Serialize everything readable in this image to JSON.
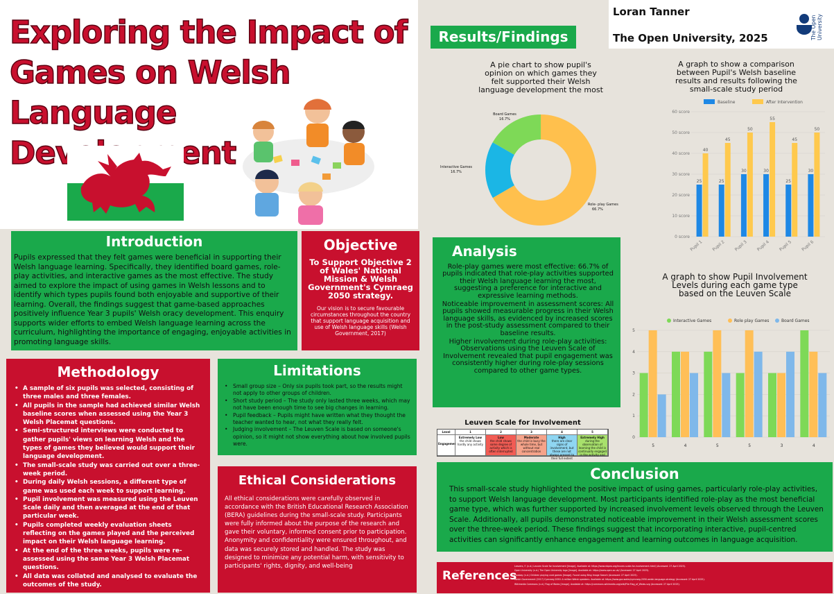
{
  "title": {
    "line1": "Exploring the Impact of",
    "line2": "Games on Welsh Language",
    "line3": "Development"
  },
  "author": {
    "name": "Loran Tanner",
    "institution": "The Open University, 2025",
    "logo_text": "The Open University"
  },
  "colors": {
    "green": "#1aa94b",
    "red": "#c8102e",
    "baseline": "#1e88e5",
    "after": "#ffc94d",
    "interactive": "#7ed957",
    "roleplay": "#ffbf57",
    "board": "#7fb8ea"
  },
  "results_heading": "Results/Findings",
  "introduction": {
    "heading": "Introduction",
    "text": "Pupils expressed that they felt games were beneficial in supporting their Welsh language learning. Specifically, they identified board games, role-play activities, and interactive games as the most effective. The study aimed to explore the impact of using games in Welsh lessons and to identify which types pupils found both enjoyable and supportive of their learning. Overall, the findings suggest that game-based approaches positively influence Year 3 pupils' Welsh oracy development. This enquiry supports wider efforts to embed Welsh language learning across the curriculum, highlighting the importance of engaging, enjoyable activities in promoting language skills."
  },
  "objective": {
    "heading": "Objective",
    "main": "To Support  Objective 2 of Wales' National Mission & Welsh Government's Cymraeg 2050 strategy.",
    "sub": "Our vision is to secure favourable circumstances throughout the country that support language acquisition and use of Welsh language skills (Welsh Government, 2017)"
  },
  "methodology": {
    "heading": "Methodology",
    "items": [
      "A sample of six pupils was selected, consisting of three males and three females.",
      "All pupils in the sample had achieved similar Welsh baseline scores when assessed using the Year 3 Welsh Placemat questions.",
      "Semi-structured interviews were conducted to gather pupils' views on learning Welsh and the types of games they believed would support their language development.",
      "The small-scale study was carried out over a three-week period.",
      "During daily Welsh sessions, a different type of game was used each week to support learning.",
      "Pupil involvement was measured using the Leuven Scale daily and then averaged at the end of that particular week.",
      "Pupils completed weekly evaluation sheets reflecting on the games played and the perceived impact on their Welsh language learning.",
      "At the end of the three weeks, pupils were re-assessed using the same Year 3 Welsh Placemat questions.",
      "All data was collated and analysed to evaluate the outcomes of the study."
    ]
  },
  "limitations": {
    "heading": "Limitations",
    "items": [
      "Small group size – Only six pupils took part, so the results might not apply to other groups of children.",
      "Short study period – The study only lasted three weeks, which may not have been enough time to see big changes in learning.",
      "Pupil feedback – Pupils might have written what they thought the teacher wanted to hear, not what they really felt.",
      "Judging involvement – The Leuven Scale is based on someone's opinion, so it might not show everything about how involved pupils were."
    ]
  },
  "ethics": {
    "heading": "Ethical Considerations",
    "text": "All  ethical considerations were carefully observed in accordance with the British Educational Research Association (BERA) guidelines during the small-scale study. Participants were fully informed about the purpose of the research and gave their voluntary, informed consent prior to participation. Anonymity and confidentiality were ensured throughout, and data was securely stored and handled. The study was designed to minimize any potential harm, with sensitivity to participants' rights, dignity, and well-being"
  },
  "analysis": {
    "heading": "Analysis",
    "items": [
      {
        "lead": "Role-play games were most effective:",
        "text": "66.7% of pupils indicated that role-play activities supported their Welsh language learning the most, suggesting a preference for interactive and expressive learning methods."
      },
      {
        "lead": "Noticeable improvement in assessment scores:",
        "text": "All pupils showed measurable progress in their Welsh language skills, as evidenced by increased scores in the post-study assessment compared to their baseline results."
      },
      {
        "lead": "Higher involvement during role-play activities:",
        "text": "Observations using the Leuven Scale of Involvement revealed that pupil engagement was consistently higher during role-play sessions compared to other game types."
      }
    ]
  },
  "conclusion": {
    "heading": "Conclusion",
    "text": "This small-scale study highlighted the positive impact of using games, particularly role-play activities, to support Welsh language development. Most participants identified role-play as the most beneficial game type, which was further supported by increased involvement levels observed through the Leuven Scale. Additionally, all pupils demonstrated noticeable improvement in their Welsh assessment scores over the three-week period. These findings suggest that incorporating interactive, pupil-centred activities can significantly enhance engagement and learning outcomes in language acquisition."
  },
  "references": {
    "heading": "References",
    "lines": [
      "Leavers, F. (n.d.) Leuven Scale for Involvement [Image]. Available at: https://www.nbpeo.org/leuven-scale-for-involvement.html/ (Accessed: 27 April 2025).",
      "Open University (n.d.) The Open University logo [Image]. Available at: https://www.open.ac.uk/ (Accessed: 27 April 2025).",
      "Pixabay (n.d.) Children playing card games [Image]. Found using Bing Image Search (Accessed: 27 April 2025).",
      "Welsh Government (2017) Cymraeg 2050: A million Welsh speakers. Available at: https://www.gov.wales/cymraeg-2050-welsh-language-strategy (Accessed: 27 April 2025).",
      "Wikimedia Commons (n.d.) Flag of Wales [Image]. Available at: https://commons.wikimedia.org/wiki/File:Flag_of_Wales.svg (Accessed: 27 April 2025)."
    ]
  },
  "leuven": {
    "title": "Leuven Scale for Involvement",
    "header": [
      "Level",
      "1",
      "2",
      "3",
      "4",
      "5"
    ],
    "row_label": "Engagement",
    "levels": [
      {
        "name": "Extremely Low",
        "desc": "the child shows hardly any activity"
      },
      {
        "name": "Low",
        "desc": "the child shows some degree of activity which is often interrupted"
      },
      {
        "name": "Moderate",
        "desc": "the child is busy the whole time, but without real concentration"
      },
      {
        "name": "High",
        "desc": "there are clear signs of involvement, but these are not always present to their full extent"
      },
      {
        "name": "Extremely High",
        "desc": "during the observation of learning the child is continually engaged in the activity and"
      }
    ],
    "level_colors": [
      "#ffffff",
      "#f25c54",
      "#f6a38a",
      "#8fd6f2",
      "#a8e06c"
    ]
  },
  "chart_data": [
    {
      "type": "pie",
      "title": "A pie chart to show pupil's opinion on which games they felt supported their Welsh language development the most",
      "slices": [
        {
          "label": "Role- play Games",
          "value": 66.7,
          "value_label": "66.7%",
          "color": "#ffc04d"
        },
        {
          "label": "Interactive Games",
          "value": 16.7,
          "value_label": "16.7%",
          "color": "#1bb6e5"
        },
        {
          "label": "Board Games",
          "value": 16.7,
          "value_label": "16.7%",
          "color": "#7ed957"
        }
      ]
    },
    {
      "type": "bar",
      "title": "A graph to show a comparison between Pupil's Welsh baseline results and results following the small-scale study period",
      "categories": [
        "Pupil 1",
        "Pupil 2",
        "Pupil 3",
        "Pupil 4",
        "Pupil 5",
        "Pupil 6"
      ],
      "series": [
        {
          "name": "Baseline",
          "values": [
            25,
            25,
            30,
            30,
            25,
            30
          ],
          "color": "#1e88e5"
        },
        {
          "name": "After Intervention",
          "values": [
            40,
            45,
            50,
            55,
            45,
            50
          ],
          "color": "#ffc94d"
        }
      ],
      "yticks": [
        "0 score",
        "10 score",
        "20 score",
        "30 score",
        "40 score",
        "50 score",
        "60 score"
      ],
      "ylim": [
        0,
        60
      ],
      "legend": "top"
    },
    {
      "type": "bar",
      "title": "A graph to show Pupil Involvement Levels during each game type based on the Leuven Scale",
      "categories": [
        "5",
        "4",
        "5",
        "5",
        "3",
        "4"
      ],
      "series": [
        {
          "name": "Interactive Games",
          "values": [
            3,
            4,
            4,
            3,
            3,
            5
          ],
          "color": "#7ed957"
        },
        {
          "name": "Role play Games",
          "values": [
            5,
            4,
            5,
            5,
            3,
            4
          ],
          "color": "#ffbf57"
        },
        {
          "name": "Board Games",
          "values": [
            2,
            3,
            3,
            4,
            4,
            3
          ],
          "color": "#7fb8ea"
        }
      ],
      "yticks": [
        "0",
        "1",
        "2",
        "3",
        "4",
        "5"
      ],
      "ylim": [
        0,
        5
      ],
      "legend": "top"
    }
  ]
}
